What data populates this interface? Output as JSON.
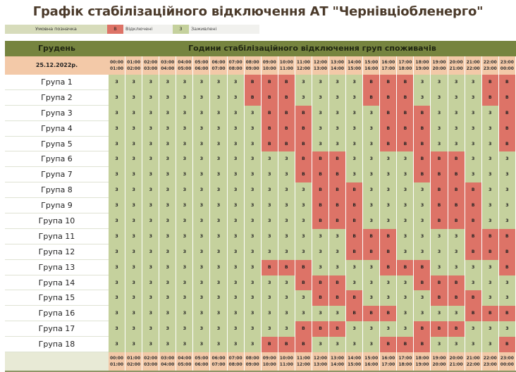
{
  "title": "Графік стабілізаційного відключення АТ \"Чернівціобленерго\"",
  "legend": {
    "label": "Умовна позначка",
    "off_code": "В",
    "off_label": "Відключені",
    "on_code": "З",
    "on_label": "Заживлені"
  },
  "colors": {
    "off": "#dd7367",
    "on": "#c5d19d",
    "header": "#76843f",
    "time_row": "#f3c9a8"
  },
  "table": {
    "month_header": "Грудень",
    "hours_header": "Години стабілізаційного відключення груп споживачів",
    "date": "25.12.2022р.",
    "time_slots": [
      {
        "from": "00:00",
        "to": "01:00"
      },
      {
        "from": "01:00",
        "to": "02:00"
      },
      {
        "from": "02:00",
        "to": "03:00"
      },
      {
        "from": "03:00",
        "to": "04:00"
      },
      {
        "from": "04:00",
        "to": "05:00"
      },
      {
        "from": "05:00",
        "to": "06:00"
      },
      {
        "from": "06:00",
        "to": "07:00"
      },
      {
        "from": "07:00",
        "to": "08:00"
      },
      {
        "from": "08:00",
        "to": "09:00"
      },
      {
        "from": "09:00",
        "to": "10:00"
      },
      {
        "from": "10:00",
        "to": "11:00"
      },
      {
        "from": "11:00",
        "to": "12:00"
      },
      {
        "from": "12:00",
        "to": "13:00"
      },
      {
        "from": "13:00",
        "to": "14:00"
      },
      {
        "from": "14:00",
        "to": "15:00"
      },
      {
        "from": "15:00",
        "to": "16:00"
      },
      {
        "from": "16:00",
        "to": "17:00"
      },
      {
        "from": "17:00",
        "to": "18:00"
      },
      {
        "from": "18:00",
        "to": "19:00"
      },
      {
        "from": "19:00",
        "to": "20:00"
      },
      {
        "from": "20:00",
        "to": "21:00"
      },
      {
        "from": "21:00",
        "to": "22:00"
      },
      {
        "from": "22:00",
        "to": "23:00"
      },
      {
        "from": "23:00",
        "to": "00:00"
      }
    ],
    "groups": [
      {
        "name": "Група 1",
        "states": "ЗЗЗЗЗЗЗЗВВВЗЗЗЗВВВЗЗЗЗВВ"
      },
      {
        "name": "Група 2",
        "states": "ЗЗЗЗЗЗЗЗВВВЗЗЗЗВВВЗЗЗЗВВ"
      },
      {
        "name": "Група 3",
        "states": "ЗЗЗЗЗЗЗЗЗВВВЗЗЗЗВВВЗЗЗЗВ"
      },
      {
        "name": "Група 4",
        "states": "ЗЗЗЗЗЗЗЗЗВВВЗЗЗЗВВВЗЗЗЗВ"
      },
      {
        "name": "Група 5",
        "states": "ЗЗЗЗЗЗЗЗЗВВВЗЗЗЗВВВЗЗЗЗВ"
      },
      {
        "name": "Група 6",
        "states": "ЗЗЗЗЗЗЗЗЗЗЗВВВЗЗЗЗВВВЗЗЗ"
      },
      {
        "name": "Група 7",
        "states": "ЗЗЗЗЗЗЗЗЗЗЗВВВЗЗЗЗВВВЗЗЗ"
      },
      {
        "name": "Група 8",
        "states": "ЗЗЗЗЗЗЗЗЗЗЗЗВВВЗЗЗЗВВВЗЗ"
      },
      {
        "name": "Група 9",
        "states": "ЗЗЗЗЗЗЗЗЗЗЗЗВВВЗЗЗЗВВВЗЗ"
      },
      {
        "name": "Група 10",
        "states": "ЗЗЗЗЗЗЗЗЗЗЗЗВВВЗЗЗЗВВВЗЗ"
      },
      {
        "name": "Група 11",
        "states": "ЗЗЗЗЗЗЗЗЗЗЗЗЗЗВВВЗЗЗЗВВВ"
      },
      {
        "name": "Група 12",
        "states": "ЗЗЗЗЗЗЗЗЗЗЗЗЗЗВВВЗЗЗЗВВВ"
      },
      {
        "name": "Група 13",
        "states": "ЗЗЗЗЗЗЗЗЗВВВЗЗЗЗВВВЗЗЗЗВ"
      },
      {
        "name": "Група 14",
        "states": "ЗЗЗЗЗЗЗЗЗЗЗВВВЗЗЗЗВВВЗЗЗ"
      },
      {
        "name": "Група 15",
        "states": "ЗЗЗЗЗЗЗЗЗЗЗЗВВВЗЗЗЗВВВЗЗ"
      },
      {
        "name": "Група 16",
        "states": "ЗЗЗЗЗЗЗЗЗЗЗЗЗЗВВВЗЗЗЗВВВ"
      },
      {
        "name": "Група 17",
        "states": "ЗЗЗЗЗЗЗЗЗЗЗВВВЗЗЗЗВВВЗЗЗ"
      },
      {
        "name": "Група 18",
        "states": "ЗЗЗЗЗЗЗЗЗВВВЗЗЗЗВВВЗЗЗЗВ"
      }
    ]
  }
}
